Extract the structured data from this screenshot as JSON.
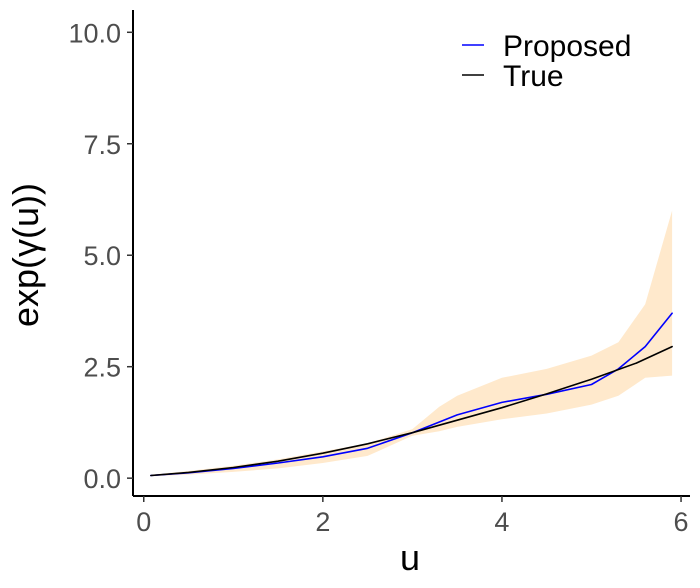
{
  "chart_data": {
    "type": "line",
    "xlabel": "u",
    "ylabel": "exp(γ(u))",
    "xlim": [
      -0.12,
      6.1
    ],
    "ylim": [
      -0.4,
      10.5
    ],
    "x_ticks": [
      0,
      2,
      4,
      6
    ],
    "x_tick_labels": [
      "0",
      "2",
      "4",
      "6"
    ],
    "y_ticks": [
      0,
      2.5,
      5,
      7.5,
      10
    ],
    "y_tick_labels": [
      "0.0",
      "2.5",
      "5.0",
      "7.5",
      "10.0"
    ],
    "grid": false,
    "legend_position": "top-right",
    "series": [
      {
        "name": "Proposed",
        "color": "#0000ff",
        "x": [
          0.08,
          0.5,
          1.0,
          1.5,
          2.0,
          2.5,
          3.0,
          3.5,
          4.0,
          4.5,
          5.0,
          5.3,
          5.6,
          5.9
        ],
        "y": [
          0.06,
          0.12,
          0.22,
          0.34,
          0.48,
          0.67,
          1.02,
          1.42,
          1.7,
          1.88,
          2.1,
          2.45,
          2.95,
          3.7
        ]
      },
      {
        "name": "True",
        "color": "#000000",
        "x": [
          0.08,
          0.5,
          1.0,
          1.5,
          2.0,
          2.5,
          3.0,
          3.5,
          4.0,
          4.5,
          5.0,
          5.5,
          5.9
        ],
        "y": [
          0.06,
          0.13,
          0.24,
          0.38,
          0.56,
          0.77,
          1.02,
          1.3,
          1.58,
          1.89,
          2.22,
          2.58,
          2.95
        ]
      }
    ],
    "band": {
      "color": "#ffe9cc",
      "x": [
        0.08,
        0.5,
        1.0,
        1.5,
        2.0,
        2.5,
        3.0,
        3.3,
        3.5,
        4.0,
        4.5,
        5.0,
        5.3,
        5.6,
        5.9
      ],
      "lower": [
        0.04,
        0.08,
        0.14,
        0.22,
        0.34,
        0.5,
        0.95,
        1.05,
        1.15,
        1.32,
        1.45,
        1.65,
        1.85,
        2.25,
        2.3
      ],
      "upper": [
        0.08,
        0.16,
        0.28,
        0.42,
        0.6,
        0.78,
        1.1,
        1.6,
        1.85,
        2.25,
        2.45,
        2.75,
        3.05,
        3.9,
        6.0
      ]
    }
  }
}
